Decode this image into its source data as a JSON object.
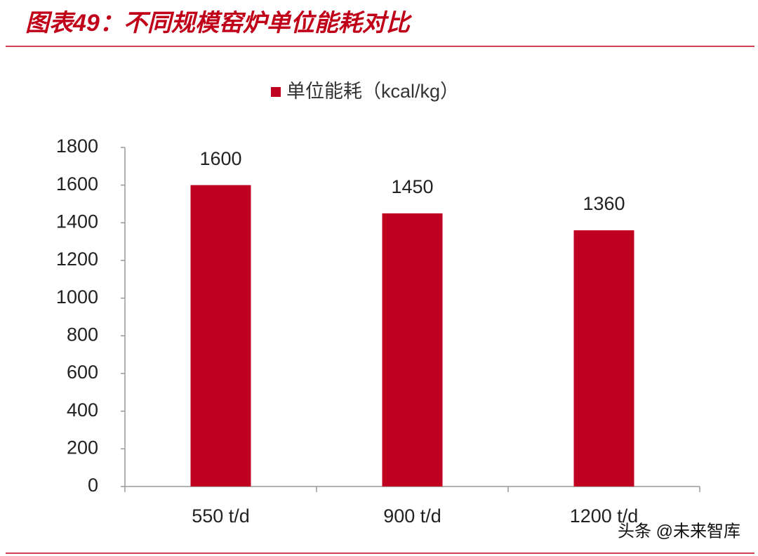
{
  "chart_data": {
    "type": "bar",
    "title": "图表49：不同规模窑炉单位能耗对比",
    "categories": [
      "550 t/d",
      "900 t/d",
      "1200 t/d"
    ],
    "series": [
      {
        "name": "单位能耗（kcal/kg）",
        "color": "#c00020",
        "values": [
          1600,
          1450,
          1360
        ]
      }
    ],
    "ylim": [
      0,
      1800
    ],
    "yticks": [
      0,
      200,
      400,
      600,
      800,
      1000,
      1200,
      1400,
      1600,
      1800
    ],
    "legend": "top",
    "watermark": "头条 @未来智库"
  }
}
